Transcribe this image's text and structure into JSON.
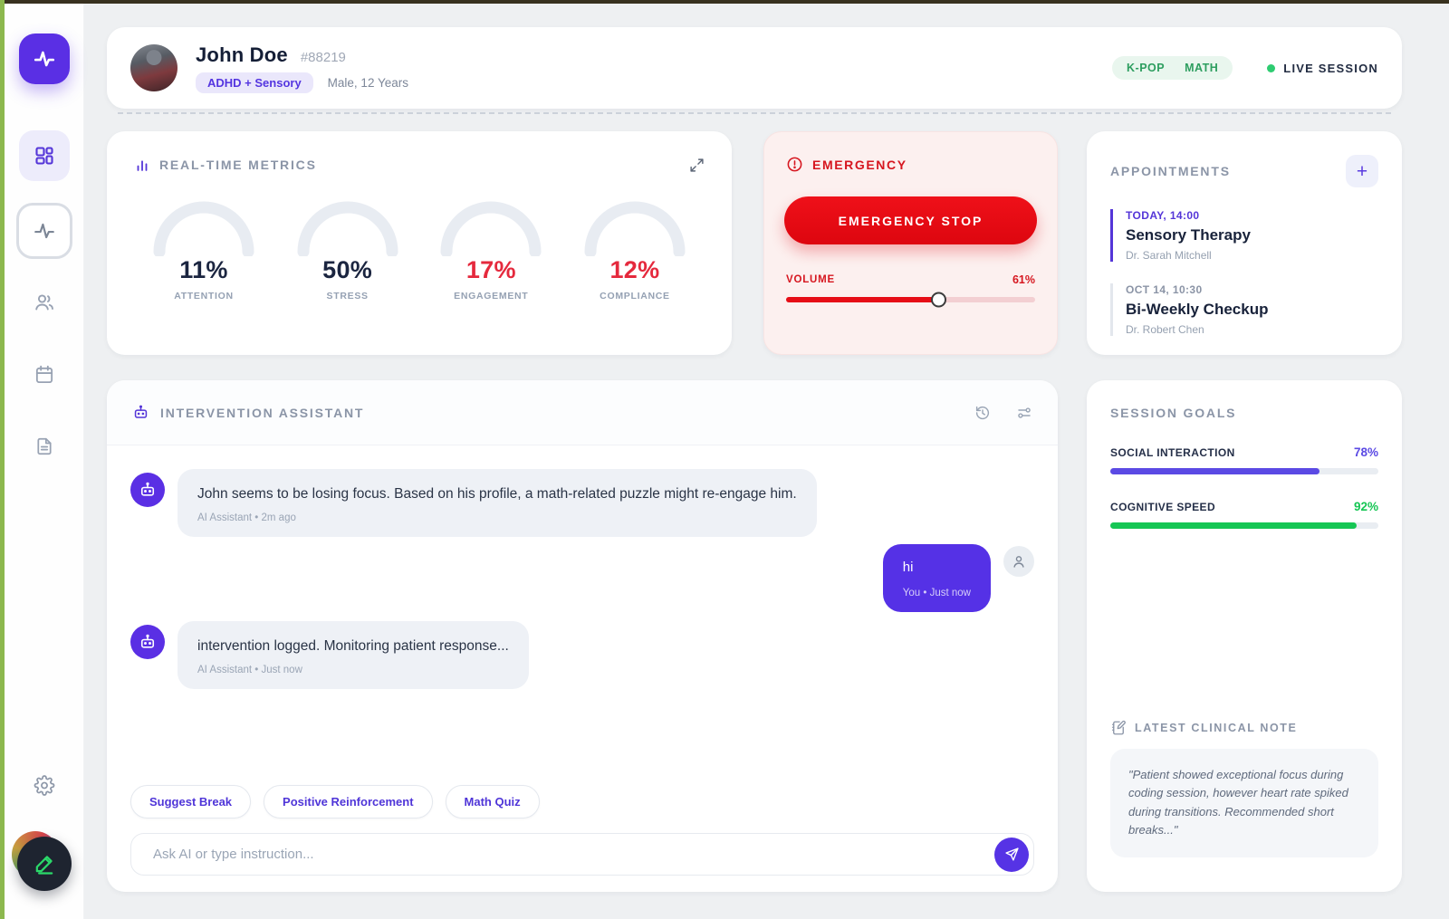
{
  "header": {
    "name": "John Doe",
    "patient_id": "#88219",
    "condition": "ADHD + Sensory",
    "demographics": "Male, 12 Years",
    "tags": [
      "K-POP",
      "MATH"
    ],
    "live_label": "LIVE SESSION"
  },
  "metrics": {
    "title": "REAL-TIME METRICS",
    "gauges": [
      {
        "value": "11%",
        "label": "ATTENTION",
        "color": "#1b2540"
      },
      {
        "value": "50%",
        "label": "STRESS",
        "color": "#1b2540"
      },
      {
        "value": "17%",
        "label": "ENGAGEMENT",
        "color": "#e5293d"
      },
      {
        "value": "12%",
        "label": "COMPLIANCE",
        "color": "#e5293d"
      }
    ]
  },
  "emergency": {
    "title": "EMERGENCY",
    "stop_label": "EMERGENCY STOP",
    "volume_label": "VOLUME",
    "volume_value": "61%",
    "volume_percent": 61,
    "accent_color": "#e60d16"
  },
  "appointments": {
    "title": "APPOINTMENTS",
    "items": [
      {
        "time": "TODAY, 14:00",
        "name": "Sensory Therapy",
        "doctor": "Dr. Sarah Mitchell"
      },
      {
        "time": "OCT 14, 10:30",
        "name": "Bi-Weekly Checkup",
        "doctor": "Dr. Robert Chen"
      }
    ]
  },
  "assistant": {
    "title": "INTERVENTION ASSISTANT",
    "messages": [
      {
        "role": "ai",
        "text": "John seems to be losing focus. Based on his profile, a math-related puzzle might re-engage him.",
        "meta": "AI Assistant • 2m ago"
      },
      {
        "role": "user",
        "text": "hi",
        "meta": "You • Just now"
      },
      {
        "role": "ai",
        "text": "intervention logged. Monitoring patient response...",
        "meta": "AI Assistant • Just now"
      }
    ],
    "quick_actions": [
      "Suggest Break",
      "Positive Reinforcement",
      "Math Quiz"
    ],
    "input_placeholder": "Ask AI or type instruction..."
  },
  "goals": {
    "title": "SESSION GOALS",
    "items": [
      {
        "label": "SOCIAL INTERACTION",
        "value": "78%",
        "percent": 78,
        "color": "#5b4ae4"
      },
      {
        "label": "COGNITIVE SPEED",
        "value": "92%",
        "percent": 92,
        "color": "#16c654"
      }
    ]
  },
  "clinical_note": {
    "title": "LATEST CLINICAL NOTE",
    "text": "\"Patient showed exceptional focus during coding session, however heart rate spiked during transitions. Recommended short breaks...\""
  },
  "icons": [
    "activity-logo-icon",
    "dashboard-grid-icon",
    "activity-pulse-icon",
    "users-icon",
    "calendar-icon",
    "document-icon",
    "gear-icon",
    "edit-pencil-icon",
    "bar-chart-icon",
    "expand-icon",
    "alert-circle-icon",
    "plus-icon",
    "robot-icon",
    "history-icon",
    "sliders-icon",
    "person-icon",
    "send-icon",
    "notebook-pen-icon",
    "live-dot"
  ],
  "colors": {
    "primary_purple": "#5a2fe4",
    "emergency_red": "#e60d16",
    "success_green": "#2ecc71"
  }
}
